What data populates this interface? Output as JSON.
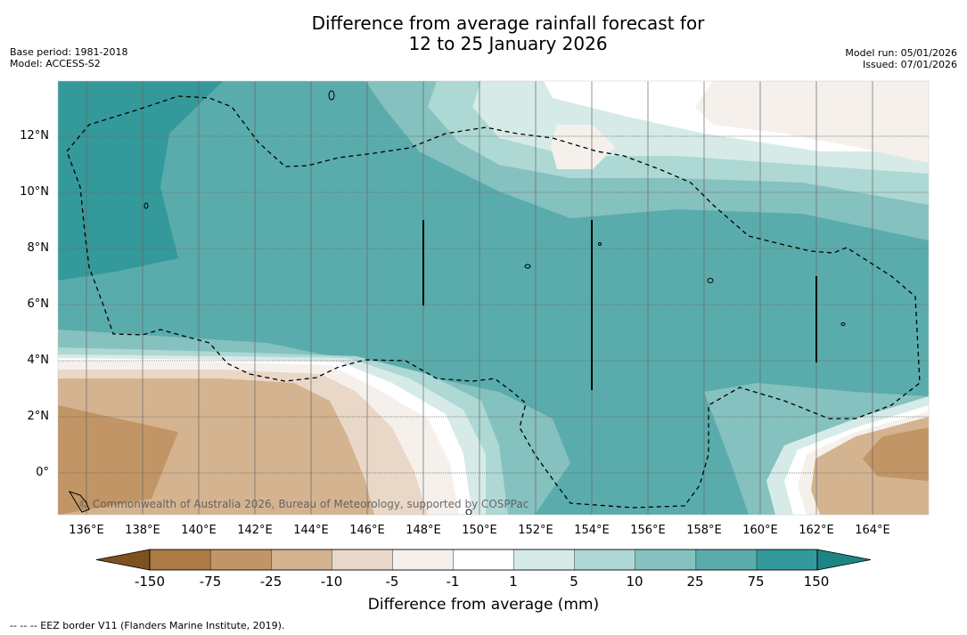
{
  "header": {
    "title_line1": "Difference from average rainfall forecast for",
    "title_line2": "12 to 25 January 2026",
    "base_period": "Base period: 1981-2018",
    "model": "Model: ACCESS-S2",
    "model_run": "Model run: 05/01/2026",
    "issued": "Issued: 07/01/2026"
  },
  "map": {
    "latitude_labels": [
      "12°N",
      "10°N",
      "8°N",
      "6°N",
      "4°N",
      "2°N",
      "0°"
    ],
    "longitude_labels": [
      "136°E",
      "138°E",
      "140°E",
      "142°E",
      "144°E",
      "146°E",
      "148°E",
      "150°E",
      "152°E",
      "154°E",
      "156°E",
      "158°E",
      "160°E",
      "162°E",
      "164°E"
    ],
    "credit": "© Commonwealth of Australia 2026, Bureau of Meteorology, supported by COSPPac"
  },
  "legend": {
    "labels": [
      "-150",
      "-75",
      "-25",
      "-10",
      "-5",
      "-1",
      "1",
      "5",
      "10",
      "25",
      "75",
      "150"
    ],
    "colors": [
      "#7e5121",
      "#ab7a45",
      "#c19565",
      "#d4b390",
      "#e9d8c7",
      "#f5f0eb",
      "#ffffff",
      "#d6ebe8",
      "#add8d4",
      "#85c1bf",
      "#59acab",
      "#34999a",
      "#1d8585"
    ],
    "title": "Difference from average (mm)"
  },
  "footer": {
    "note": "-- -- -- EEZ border V11 (Flanders Marine Institute, 2019)."
  }
}
